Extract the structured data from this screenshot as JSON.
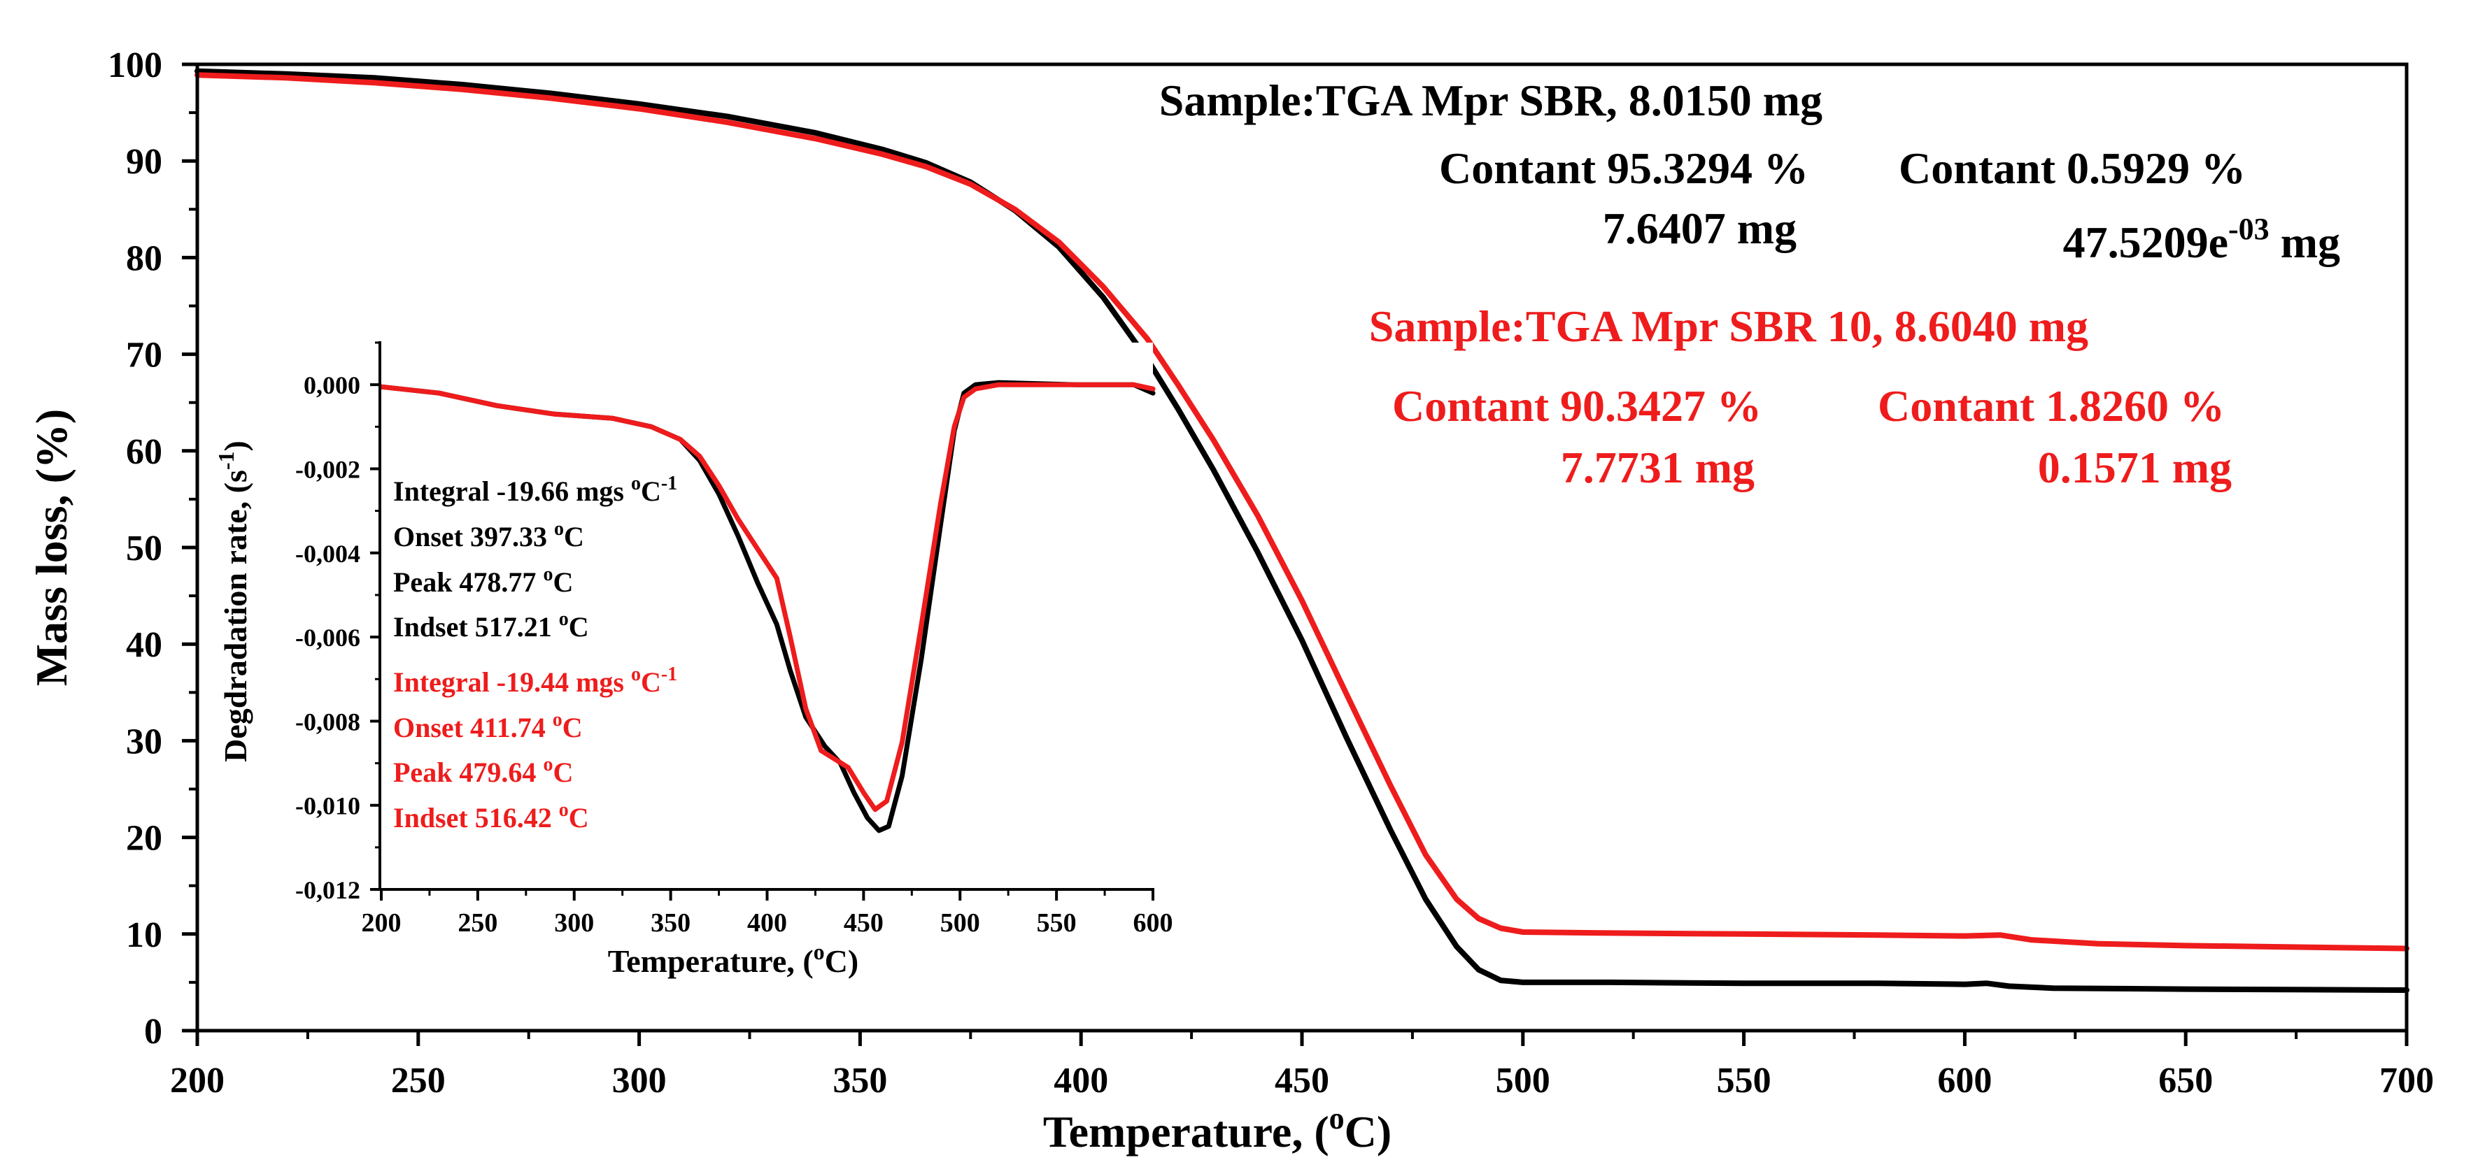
{
  "colors": {
    "black_series": "#000000",
    "red_series": "#ee1c1c",
    "axis": "#000000"
  },
  "chart_data": [
    {
      "id": "main",
      "type": "line",
      "xlabel_main": "Temperature, (",
      "xlabel_sup": "o",
      "xlabel_end": "C)",
      "ylabel": "Mass loss, (%)",
      "xlim": [
        200,
        700
      ],
      "ylim": [
        0,
        100
      ],
      "x_ticks": [
        200,
        250,
        300,
        350,
        400,
        450,
        500,
        550,
        600,
        650,
        700
      ],
      "y_ticks": [
        0,
        10,
        20,
        30,
        40,
        50,
        60,
        70,
        80,
        90,
        100
      ],
      "series": [
        {
          "color": "#000000",
          "points": [
            [
              200,
              99.3
            ],
            [
              220,
              99.0
            ],
            [
              240,
              98.6
            ],
            [
              260,
              97.9
            ],
            [
              280,
              97.0
            ],
            [
              300,
              95.9
            ],
            [
              320,
              94.6
            ],
            [
              340,
              92.9
            ],
            [
              355,
              91.2
            ],
            [
              365,
              89.8
            ],
            [
              375,
              87.8
            ],
            [
              385,
              84.9
            ],
            [
              395,
              81.1
            ],
            [
              405,
              75.9
            ],
            [
              415,
              69.5
            ],
            [
              422,
              64.3
            ],
            [
              430,
              58.0
            ],
            [
              440,
              49.5
            ],
            [
              450,
              40.4
            ],
            [
              460,
              30.4
            ],
            [
              470,
              20.8
            ],
            [
              478,
              13.6
            ],
            [
              485,
              8.7
            ],
            [
              490,
              6.3
            ],
            [
              495,
              5.2
            ],
            [
              500,
              5.0
            ],
            [
              520,
              5.0
            ],
            [
              550,
              4.9
            ],
            [
              580,
              4.9
            ],
            [
              600,
              4.8
            ],
            [
              605,
              4.9
            ],
            [
              610,
              4.6
            ],
            [
              620,
              4.4
            ],
            [
              650,
              4.3
            ],
            [
              700,
              4.2
            ]
          ]
        },
        {
          "color": "#ee1c1c",
          "points": [
            [
              200,
              98.9
            ],
            [
              220,
              98.6
            ],
            [
              240,
              98.1
            ],
            [
              260,
              97.4
            ],
            [
              280,
              96.5
            ],
            [
              300,
              95.4
            ],
            [
              320,
              94.0
            ],
            [
              340,
              92.3
            ],
            [
              355,
              90.7
            ],
            [
              365,
              89.4
            ],
            [
              375,
              87.6
            ],
            [
              385,
              85.0
            ],
            [
              395,
              81.6
            ],
            [
              405,
              77.0
            ],
            [
              415,
              71.6
            ],
            [
              422,
              66.8
            ],
            [
              430,
              61.1
            ],
            [
              440,
              53.3
            ],
            [
              450,
              44.5
            ],
            [
              460,
              34.9
            ],
            [
              470,
              25.4
            ],
            [
              478,
              18.2
            ],
            [
              485,
              13.6
            ],
            [
              490,
              11.6
            ],
            [
              495,
              10.6
            ],
            [
              500,
              10.2
            ],
            [
              520,
              10.1
            ],
            [
              550,
              10.0
            ],
            [
              580,
              9.9
            ],
            [
              600,
              9.8
            ],
            [
              608,
              9.9
            ],
            [
              615,
              9.4
            ],
            [
              630,
              9.0
            ],
            [
              650,
              8.8
            ],
            [
              700,
              8.5
            ]
          ]
        }
      ],
      "annotations": {
        "sample_black": "Sample:TGA Mpr SBR, 8.0150 mg",
        "black_contant_1": "Contant 95.3294 %",
        "black_mass_1": "7.6407 mg",
        "black_contant_2": "Contant 0.5929 %",
        "black_mass_2_base": "47.5209e",
        "black_mass_2_sup": "-03",
        "black_mass_2_unit": " mg",
        "sample_red": "Sample:TGA Mpr SBR 10, 8.6040 mg",
        "red_contant_1": "Contant 90.3427 %",
        "red_mass_1": "7.7731 mg",
        "red_contant_2": "Contant 1.8260 %",
        "red_mass_2": "0.1571 mg"
      }
    },
    {
      "id": "inset",
      "type": "line",
      "xlabel_main": "Temperature, (",
      "xlabel_sup": "o",
      "xlabel_end": "C)",
      "ylabel_main": "Degdradation rate, (s",
      "ylabel_sup": "-1",
      "ylabel_end": ")",
      "xlim": [
        200,
        600
      ],
      "ylim": [
        -0.012,
        0.001
      ],
      "x_ticks": [
        200,
        250,
        300,
        350,
        400,
        450,
        500,
        550,
        600
      ],
      "y_ticks": [
        0,
        -0.002,
        -0.004,
        -0.006,
        -0.008,
        -0.01,
        -0.012
      ],
      "y_tick_labels": [
        "0,000",
        "-0,002",
        "-0,004",
        "-0,006",
        "-0,008",
        "-0,010",
        "-0,012"
      ],
      "series": [
        {
          "color": "#000000",
          "points": [
            [
              200,
              -5e-05
            ],
            [
              230,
              -0.0002
            ],
            [
              260,
              -0.0005
            ],
            [
              290,
              -0.0007
            ],
            [
              320,
              -0.0008
            ],
            [
              340,
              -0.001
            ],
            [
              355,
              -0.0013
            ],
            [
              365,
              -0.0018
            ],
            [
              375,
              -0.0026
            ],
            [
              385,
              -0.0036
            ],
            [
              395,
              -0.0047
            ],
            [
              405,
              -0.0057
            ],
            [
              412,
              -0.0068
            ],
            [
              420,
              -0.0079
            ],
            [
              430,
              -0.0086
            ],
            [
              438,
              -0.009
            ],
            [
              445,
              -0.0097
            ],
            [
              452,
              -0.0103
            ],
            [
              458,
              -0.0106
            ],
            [
              463,
              -0.0105
            ],
            [
              470,
              -0.0093
            ],
            [
              480,
              -0.0065
            ],
            [
              490,
              -0.0033
            ],
            [
              497,
              -0.0011
            ],
            [
              502,
              -0.0002
            ],
            [
              508,
              0.0
            ],
            [
              520,
              5e-05
            ],
            [
              560,
              0.0
            ],
            [
              590,
              0.0
            ],
            [
              600,
              -0.0002
            ]
          ]
        },
        {
          "color": "#ee1c1c",
          "points": [
            [
              200,
              -5e-05
            ],
            [
              230,
              -0.0002
            ],
            [
              260,
              -0.0005
            ],
            [
              290,
              -0.0007
            ],
            [
              320,
              -0.0008
            ],
            [
              340,
              -0.001
            ],
            [
              355,
              -0.0013
            ],
            [
              365,
              -0.0017
            ],
            [
              375,
              -0.0024
            ],
            [
              385,
              -0.0032
            ],
            [
              395,
              -0.0039
            ],
            [
              405,
              -0.0046
            ],
            [
              412,
              -0.006
            ],
            [
              420,
              -0.0077
            ],
            [
              428,
              -0.0087
            ],
            [
              435,
              -0.0089
            ],
            [
              442,
              -0.0091
            ],
            [
              450,
              -0.0097
            ],
            [
              456,
              -0.0101
            ],
            [
              462,
              -0.0099
            ],
            [
              470,
              -0.0085
            ],
            [
              480,
              -0.0057
            ],
            [
              490,
              -0.0028
            ],
            [
              497,
              -0.001
            ],
            [
              502,
              -0.0003
            ],
            [
              508,
              -0.0001
            ],
            [
              520,
              0.0
            ],
            [
              560,
              0.0
            ],
            [
              590,
              0.0
            ],
            [
              600,
              -0.0001
            ]
          ]
        }
      ],
      "labels_black": [
        {
          "text": "Integral -19.66 mgs ",
          "sup": "o",
          "end": "C",
          "sup2": "-1"
        },
        {
          "text": "Onset 397.33 ",
          "sup": "o",
          "end": "C",
          "sup2": ""
        },
        {
          "text": "Peak 478.77 ",
          "sup": "o",
          "end": "C",
          "sup2": ""
        },
        {
          "text": "Indset 517.21 ",
          "sup": "o",
          "end": "C",
          "sup2": ""
        }
      ],
      "labels_red": [
        {
          "text": "Integral -19.44 mgs ",
          "sup": "o",
          "end": "C",
          "sup2": "-1"
        },
        {
          "text": "Onset 411.74 ",
          "sup": "o",
          "end": "C",
          "sup2": ""
        },
        {
          "text": "Peak 479.64 ",
          "sup": "o",
          "end": "C",
          "sup2": ""
        },
        {
          "text": "Indset 516.42 ",
          "sup": "o",
          "end": "C",
          "sup2": ""
        }
      ]
    }
  ]
}
